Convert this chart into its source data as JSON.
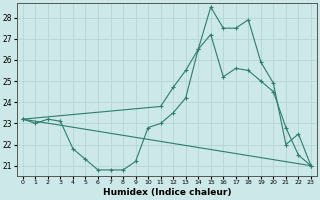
{
  "xlabel": "Humidex (Indice chaleur)",
  "bg_color": "#cce8e8",
  "line_color": "#2d7c6e",
  "grid_color": "#b8d8d8",
  "ylim": [
    20.5,
    28.7
  ],
  "xlim": [
    -0.5,
    23.5
  ],
  "yticks": [
    21,
    22,
    23,
    24,
    25,
    26,
    27,
    28
  ],
  "xticks": [
    0,
    1,
    2,
    3,
    4,
    5,
    6,
    7,
    8,
    9,
    10,
    11,
    12,
    13,
    14,
    15,
    16,
    17,
    18,
    19,
    20,
    21,
    22,
    23
  ],
  "line1_x": [
    0,
    1,
    2,
    3,
    4,
    5,
    6,
    7,
    8,
    9,
    10,
    11,
    12,
    13,
    14,
    15,
    16,
    17,
    18,
    19,
    20,
    21,
    22,
    23
  ],
  "line1_y": [
    23.2,
    23.0,
    23.2,
    23.1,
    21.8,
    21.3,
    20.8,
    20.8,
    20.8,
    21.2,
    22.8,
    23.0,
    23.5,
    24.2,
    26.5,
    28.5,
    27.5,
    27.5,
    27.9,
    25.9,
    24.9,
    22.0,
    22.5,
    21.0
  ],
  "line2_x": [
    0,
    11,
    12,
    13,
    14,
    15,
    16,
    17,
    18,
    19,
    20,
    21,
    22,
    23
  ],
  "line2_y": [
    23.2,
    23.8,
    24.7,
    25.5,
    26.5,
    27.2,
    25.2,
    25.6,
    25.5,
    25.0,
    24.5,
    22.8,
    21.5,
    21.0
  ],
  "line3_x": [
    0,
    23
  ],
  "line3_y": [
    23.2,
    21.0
  ],
  "figsize": [
    3.2,
    2.0
  ],
  "dpi": 100
}
